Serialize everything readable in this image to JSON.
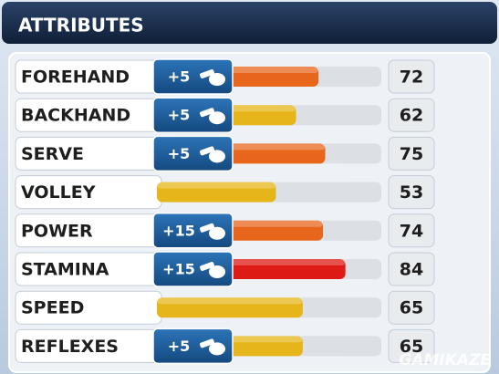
{
  "header": {
    "title": "ATTRIBUTES"
  },
  "attributes": [
    {
      "name": "FOREHAND",
      "bonus": "+5",
      "value": 72,
      "color": "#e8661c"
    },
    {
      "name": "BACKHAND",
      "bonus": "+5",
      "value": 62,
      "color": "#e6b519"
    },
    {
      "name": "SERVE",
      "bonus": "+5",
      "value": 75,
      "color": "#e8661c"
    },
    {
      "name": "VOLLEY",
      "value": 53,
      "color": "#e6b519"
    },
    {
      "name": "POWER",
      "bonus": "+15",
      "value": 74,
      "color": "#e8661c"
    },
    {
      "name": "STAMINA",
      "bonus": "+15",
      "value": 84,
      "color": "#de1a14"
    },
    {
      "name": "SPEED",
      "value": 65,
      "color": "#e6b519"
    },
    {
      "name": "REFLEXES",
      "bonus": "+5",
      "value": 65,
      "color": "#e6b519"
    }
  ],
  "watermark": "GAMIKAZE"
}
